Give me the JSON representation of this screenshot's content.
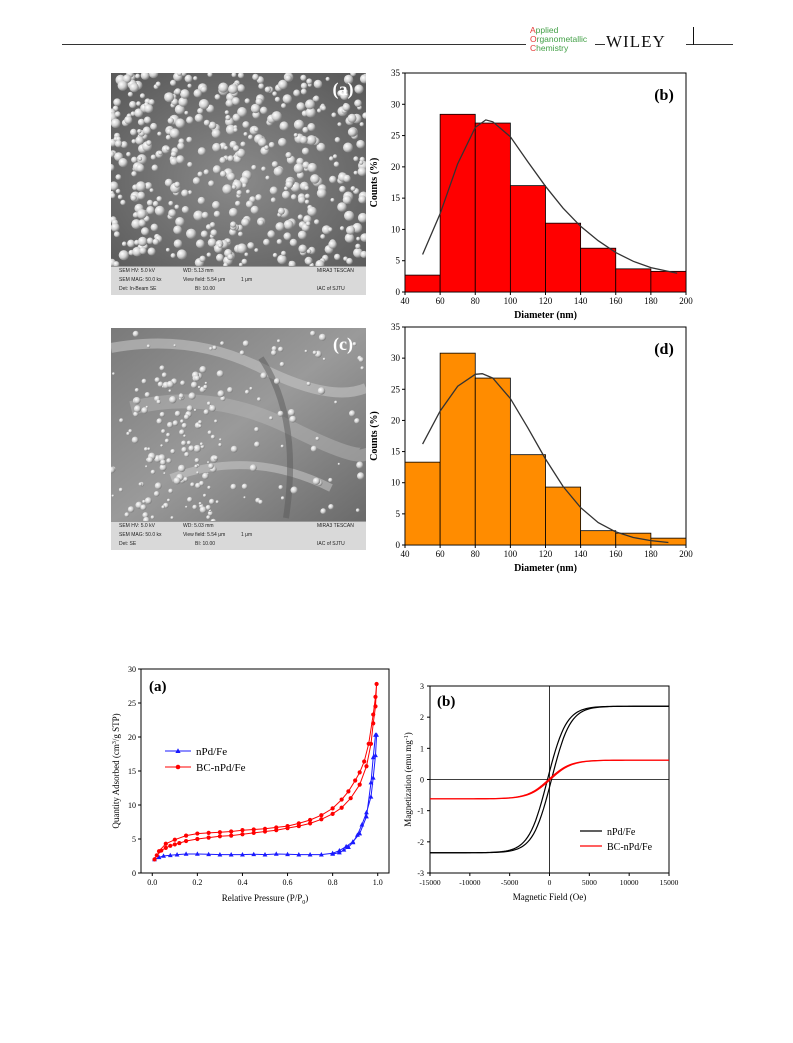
{
  "header": {
    "journal_lines": [
      {
        "cap": "A",
        "rest": "pplied"
      },
      {
        "cap": "O",
        "rest": "rganometallic"
      },
      {
        "cap": "C",
        "rest": "hemistry"
      }
    ],
    "publisher": "WILEY",
    "colors": {
      "journal_caps": "#e53935",
      "journal_text": "#43a047"
    }
  },
  "sem_images": [
    {
      "panel_label": "(a)",
      "info": {
        "hv": "SEM HV: 5.0 kV",
        "wd": "WD: 5.13 mm",
        "brand": "MIRA3 TESCAN",
        "mag": "SEM MAG: 50.0 kx",
        "field": "View field: 5.54 μm",
        "scale": "1 μm",
        "det": "Det: In-Beam SE",
        "bi": "BI: 10.00",
        "lab": "IAC of SJTU"
      }
    },
    {
      "panel_label": "(c)",
      "info": {
        "hv": "SEM HV: 5.0 kV",
        "wd": "WD: 5.03 mm",
        "brand": "MIRA3 TESCAN",
        "mag": "SEM MAG: 50.0 kx",
        "field": "View field: 5.54 μm",
        "scale": "1 μm",
        "det": "Det: SE",
        "bi": "BI: 10.00",
        "lab": "IAC of SJTU"
      }
    }
  ],
  "chart_data": [
    {
      "type": "bar",
      "panel_label": "(b)",
      "xlabel": "Diameter (nm)",
      "ylabel": "Counts (%)",
      "xlim": [
        40,
        200
      ],
      "ylim": [
        0,
        35
      ],
      "xticks": [
        40,
        60,
        80,
        100,
        120,
        140,
        160,
        180,
        200
      ],
      "yticks": [
        0,
        5,
        10,
        15,
        20,
        25,
        30,
        35
      ],
      "bin_width": 20,
      "bins": [
        50,
        70,
        90,
        110,
        130,
        150,
        170,
        190
      ],
      "values": [
        2.7,
        28.4,
        27.0,
        17.0,
        11.0,
        7.0,
        3.7,
        3.3
      ],
      "fit_curve": {
        "x": [
          50,
          60,
          70,
          80,
          86,
          90,
          100,
          110,
          120,
          130,
          140,
          150,
          160,
          170,
          180,
          195
        ],
        "y": [
          6.0,
          12.5,
          20.5,
          26.3,
          27.5,
          27.2,
          24.8,
          20.8,
          16.9,
          13.4,
          10.5,
          8.2,
          6.3,
          4.9,
          3.9,
          3.0
        ]
      },
      "bar_color": "#ff0000"
    },
    {
      "type": "bar",
      "panel_label": "(d)",
      "xlabel": "Diameter (nm)",
      "ylabel": "Counts (%)",
      "xlim": [
        40,
        200
      ],
      "ylim": [
        0,
        35
      ],
      "xticks": [
        40,
        60,
        80,
        100,
        120,
        140,
        160,
        180,
        200
      ],
      "yticks": [
        0,
        5,
        10,
        15,
        20,
        25,
        30,
        35
      ],
      "bin_width": 20,
      "bins": [
        50,
        70,
        90,
        110,
        130,
        150,
        170,
        190
      ],
      "values": [
        13.3,
        30.8,
        26.8,
        14.5,
        9.3,
        2.3,
        1.9,
        1.1
      ],
      "fit_curve": {
        "x": [
          50,
          60,
          70,
          80,
          84,
          90,
          100,
          110,
          120,
          130,
          140,
          150,
          160,
          170,
          180,
          190
        ],
        "y": [
          16.2,
          21.5,
          25.5,
          27.4,
          27.5,
          26.8,
          23.5,
          18.8,
          13.8,
          9.4,
          6.0,
          3.6,
          2.1,
          1.2,
          0.7,
          0.4
        ]
      },
      "bar_color": "#ff8c00"
    },
    {
      "type": "line",
      "panel_label": "(a)",
      "xlabel": "Relative Pressure (P/P",
      "xlabel_sub": "0",
      "xlabel_end": ")",
      "ylabel": "Quantity Adsorbed (cm",
      "ylabel_sup": "3",
      "ylabel_end": "/g STP)",
      "xlim": [
        -0.05,
        1.05
      ],
      "ylim": [
        0,
        30
      ],
      "xticks": [
        0.0,
        0.2,
        0.4,
        0.6,
        0.8,
        1.0
      ],
      "xtick_labels": [
        "0.0",
        "0.2",
        "0.4",
        "0.6",
        "0.8",
        "1.0"
      ],
      "yticks": [
        0,
        5,
        10,
        15,
        20,
        25,
        30
      ],
      "legend_position": "middle-left",
      "series": [
        {
          "name": "nPd/Fe",
          "color": "#1a1aff",
          "marker": "triangle",
          "x": [
            0.01,
            0.03,
            0.05,
            0.08,
            0.11,
            0.15,
            0.2,
            0.25,
            0.3,
            0.35,
            0.4,
            0.45,
            0.5,
            0.55,
            0.6,
            0.65,
            0.7,
            0.75,
            0.8,
            0.83,
            0.86,
            0.89,
            0.92,
            0.95,
            0.97,
            0.98,
            0.99,
            0.995,
            0.99,
            0.98,
            0.97,
            0.95,
            0.93,
            0.91,
            0.89,
            0.87,
            0.85,
            0.83,
            0.8
          ],
          "y": [
            2.0,
            2.3,
            2.5,
            2.6,
            2.7,
            2.8,
            2.8,
            2.75,
            2.7,
            2.7,
            2.7,
            2.75,
            2.7,
            2.8,
            2.75,
            2.7,
            2.7,
            2.7,
            2.9,
            3.3,
            3.9,
            4.6,
            5.8,
            8.3,
            13.3,
            17.0,
            20.3,
            20.3,
            17.3,
            14.0,
            11.2,
            8.9,
            7.1,
            5.6,
            4.5,
            3.8,
            3.4,
            3.0,
            2.8
          ]
        },
        {
          "name": "BC-nPd/Fe",
          "color": "#ff0000",
          "marker": "circle",
          "x": [
            0.01,
            0.02,
            0.04,
            0.06,
            0.08,
            0.1,
            0.12,
            0.15,
            0.2,
            0.25,
            0.3,
            0.35,
            0.4,
            0.45,
            0.5,
            0.55,
            0.6,
            0.65,
            0.7,
            0.75,
            0.8,
            0.84,
            0.88,
            0.92,
            0.95,
            0.97,
            0.98,
            0.99,
            0.995,
            0.99,
            0.98,
            0.96,
            0.94,
            0.92,
            0.9,
            0.87,
            0.84,
            0.8,
            0.75,
            0.7,
            0.65,
            0.6,
            0.55,
            0.5,
            0.45,
            0.4,
            0.35,
            0.3,
            0.25,
            0.2,
            0.15,
            0.1,
            0.06,
            0.03
          ],
          "y": [
            2.0,
            2.6,
            3.3,
            3.7,
            4.0,
            4.2,
            4.4,
            4.7,
            5.0,
            5.2,
            5.4,
            5.5,
            5.7,
            5.9,
            6.1,
            6.3,
            6.6,
            6.9,
            7.3,
            7.9,
            8.7,
            9.6,
            11.0,
            13.0,
            15.7,
            19.0,
            22.0,
            24.5,
            27.8,
            25.9,
            23.3,
            19.0,
            16.4,
            14.8,
            13.6,
            12.0,
            10.8,
            9.5,
            8.5,
            7.8,
            7.3,
            6.9,
            6.7,
            6.5,
            6.4,
            6.3,
            6.1,
            6.0,
            5.9,
            5.8,
            5.5,
            4.9,
            4.3,
            3.2
          ]
        }
      ]
    },
    {
      "type": "line",
      "panel_label": "(b)",
      "xlabel": "Magnetic Field (Oe)",
      "ylabel": "Magnetization (emu mg",
      "ylabel_sup": "-1",
      "ylabel_end": ")",
      "xlim": [
        -15000,
        15000
      ],
      "ylim": [
        -3,
        3
      ],
      "xticks": [
        -15000,
        -10000,
        -5000,
        0,
        5000,
        10000,
        15000
      ],
      "yticks": [
        -3,
        -2,
        -1,
        0,
        1,
        2,
        3
      ],
      "zero_lines": true,
      "legend_position": "bottom-right",
      "series": [
        {
          "name": "nPd/Fe",
          "color": "#000000",
          "ms": 2.35,
          "hc": 250,
          "k": 0.00085,
          "loop": true
        },
        {
          "name": "BC-nPd/Fe",
          "color": "#ff0000",
          "ms": 0.62,
          "hc": 200,
          "k": 0.00075,
          "loop": false
        }
      ]
    }
  ]
}
